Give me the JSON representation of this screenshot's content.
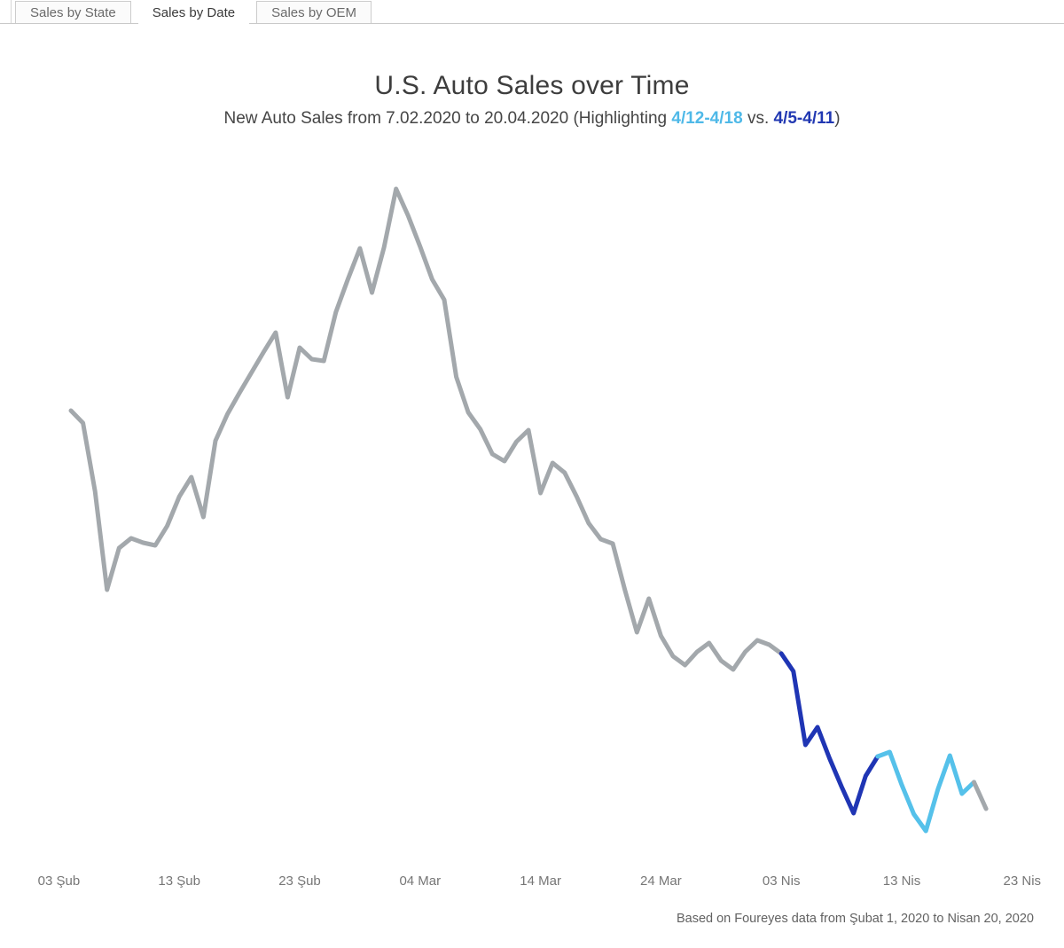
{
  "tabs": [
    {
      "label": "Sales by State",
      "active": false
    },
    {
      "label": "Sales by Date",
      "active": true
    },
    {
      "label": "Sales by OEM",
      "active": false
    }
  ],
  "header": {
    "title": "U.S. Auto Sales over Time",
    "subtitle_prefix": "New Auto Sales from 7.02.2020 to 20.04.2020 (Highlighting ",
    "highlight_range_light": "4/12-4/18",
    "subtitle_vs": " vs. ",
    "highlight_range_dark": "4/5-4/11",
    "subtitle_suffix": ")"
  },
  "footer": {
    "note": "Based on Foureyes data from Şubat 1, 2020 to Nisan 20, 2020"
  },
  "colors": {
    "line_gray": "#a3a8ac",
    "dark_blue": "#1f35b4",
    "light_blue": "#55c1ea",
    "subtitle_light_blue": "#4fb9e8",
    "subtitle_dark_blue": "#2138b2",
    "title_text": "#3d3d3d",
    "axis_text": "#767676"
  },
  "chart_data": {
    "type": "line",
    "title": "U.S. Auto Sales over Time",
    "xlabel": "",
    "ylabel": "",
    "grid": false,
    "legend": "none",
    "units": "relative daily sales index (no y-axis shown in chart)",
    "ylim": [
      0,
      800
    ],
    "x_ticks": [
      {
        "label": "03 Şub",
        "day_index": -1
      },
      {
        "label": "13 Şub",
        "day_index": 9
      },
      {
        "label": "23 Şub",
        "day_index": 19
      },
      {
        "label": "04 Mar",
        "day_index": 29
      },
      {
        "label": "14 Mar",
        "day_index": 39
      },
      {
        "label": "24 Mar",
        "day_index": 49
      },
      {
        "label": "03 Nis",
        "day_index": 59
      },
      {
        "label": "13 Nis",
        "day_index": 69
      },
      {
        "label": "23 Nis",
        "day_index": 79
      }
    ],
    "dates": [
      "2020-02-04",
      "2020-02-05",
      "2020-02-06",
      "2020-02-07",
      "2020-02-08",
      "2020-02-09",
      "2020-02-10",
      "2020-02-11",
      "2020-02-12",
      "2020-02-13",
      "2020-02-14",
      "2020-02-15",
      "2020-02-16",
      "2020-02-17",
      "2020-02-18",
      "2020-02-19",
      "2020-02-20",
      "2020-02-21",
      "2020-02-22",
      "2020-02-23",
      "2020-02-24",
      "2020-02-25",
      "2020-02-26",
      "2020-02-27",
      "2020-02-28",
      "2020-02-29",
      "2020-03-01",
      "2020-03-02",
      "2020-03-03",
      "2020-03-04",
      "2020-03-05",
      "2020-03-06",
      "2020-03-07",
      "2020-03-08",
      "2020-03-09",
      "2020-03-10",
      "2020-03-11",
      "2020-03-12",
      "2020-03-13",
      "2020-03-14",
      "2020-03-15",
      "2020-03-16",
      "2020-03-17",
      "2020-03-18",
      "2020-03-19",
      "2020-03-20",
      "2020-03-21",
      "2020-03-22",
      "2020-03-23",
      "2020-03-24",
      "2020-03-25",
      "2020-03-26",
      "2020-03-27",
      "2020-03-28",
      "2020-03-29",
      "2020-03-30",
      "2020-03-31",
      "2020-04-01",
      "2020-04-02",
      "2020-04-03",
      "2020-04-04",
      "2020-04-05",
      "2020-04-06",
      "2020-04-07",
      "2020-04-08",
      "2020-04-09",
      "2020-04-10",
      "2020-04-11",
      "2020-04-12",
      "2020-04-13",
      "2020-04-14",
      "2020-04-15",
      "2020-04-16",
      "2020-04-17",
      "2020-04-18",
      "2020-04-19",
      "2020-04-20"
    ],
    "values": [
      527,
      513,
      436,
      325,
      372,
      383,
      378,
      375,
      397,
      430,
      452,
      407,
      493,
      523,
      547,
      570,
      593,
      615,
      542,
      598,
      585,
      583,
      638,
      675,
      710,
      660,
      711,
      777,
      747,
      712,
      675,
      652,
      565,
      525,
      506,
      478,
      470,
      492,
      505,
      434,
      468,
      457,
      430,
      400,
      382,
      377,
      325,
      277,
      315,
      273,
      250,
      240,
      255,
      265,
      245,
      235,
      255,
      268,
      263,
      253,
      233,
      150,
      170,
      135,
      103,
      73,
      115,
      137,
      142,
      105,
      72,
      53,
      100,
      138,
      95,
      108,
      78
    ],
    "segments": [
      {
        "name": "baseline-gray",
        "from": 0,
        "to": 59,
        "color_key": "line_gray"
      },
      {
        "name": "week-apr5-apr11",
        "from": 59,
        "to": 67,
        "color_key": "dark_blue"
      },
      {
        "name": "week-apr12-apr18",
        "from": 67,
        "to": 75,
        "color_key": "light_blue"
      },
      {
        "name": "tail-gray",
        "from": 75,
        "to": 76,
        "color_key": "line_gray"
      }
    ]
  }
}
